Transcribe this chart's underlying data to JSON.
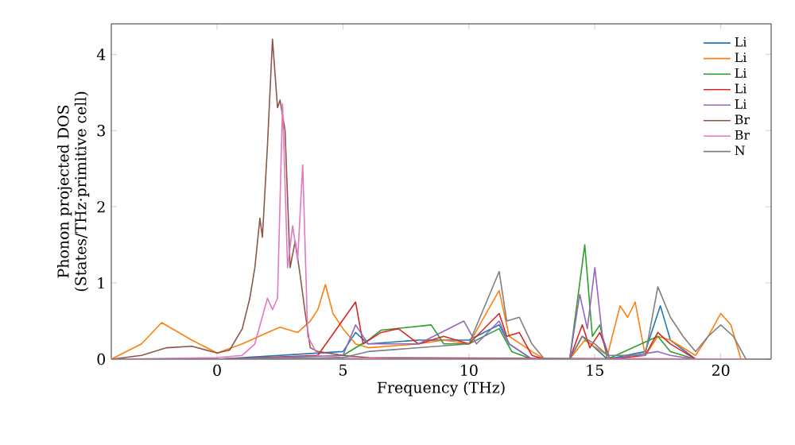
{
  "chart_data": {
    "type": "line",
    "xlabel": "Frequency (THz)",
    "ylabel": "Phonon projected DOS\n(States/THz·primitive cell)",
    "xlim": [
      -4.2,
      22
    ],
    "ylim": [
      0,
      4.4
    ],
    "xticks": [
      0,
      5,
      10,
      15,
      20
    ],
    "yticks": [
      0,
      1,
      2,
      3,
      4
    ],
    "legend": "top right",
    "grid": false,
    "series": [
      {
        "name": "Li",
        "color": "#1f77b4",
        "x": [
          -4.2,
          0,
          5,
          5.5,
          6,
          8,
          10,
          11.2,
          11.6,
          12.5,
          14,
          14.5,
          15,
          15.5,
          17,
          17.6,
          18,
          19,
          22
        ],
        "values": [
          0,
          0,
          0.1,
          0.35,
          0.2,
          0.25,
          0.25,
          0.45,
          0.2,
          0,
          0,
          0.3,
          0.15,
          0,
          0.1,
          0.7,
          0.25,
          0,
          0
        ]
      },
      {
        "name": "Li",
        "color": "#ff7f0e",
        "x": [
          -4.2,
          -3,
          -2.2,
          -1,
          0,
          1,
          2,
          2.5,
          3.2,
          3.7,
          4.0,
          4.3,
          4.6,
          5.0,
          5.5,
          6,
          8,
          9,
          10,
          11.2,
          11.6,
          12.5,
          13,
          14,
          14.6,
          15.5,
          16,
          16.3,
          16.6,
          17,
          17.5,
          18,
          19,
          19.5,
          20,
          20.4,
          20.8,
          22
        ],
        "values": [
          0,
          0.2,
          0.48,
          0.25,
          0.08,
          0.2,
          0.35,
          0.42,
          0.35,
          0.5,
          0.65,
          0.98,
          0.6,
          0.4,
          0.2,
          0.15,
          0.2,
          0.25,
          0.2,
          0.9,
          0.3,
          0.1,
          0,
          0,
          0.25,
          0.05,
          0.7,
          0.55,
          0.75,
          0.05,
          0.3,
          0.25,
          0.05,
          0.3,
          0.6,
          0.45,
          0,
          0
        ]
      },
      {
        "name": "Li",
        "color": "#2ca02c",
        "x": [
          -4.2,
          0,
          5,
          6,
          6.5,
          8.5,
          9,
          10,
          11.2,
          11.7,
          12.5,
          14,
          14.6,
          14.9,
          15.2,
          15.5,
          17.5,
          18,
          19,
          22
        ],
        "values": [
          0,
          0,
          0.05,
          0.25,
          0.38,
          0.45,
          0.2,
          0.2,
          0.4,
          0.1,
          0,
          0,
          1.5,
          0.3,
          0.45,
          0,
          0.3,
          0.1,
          0,
          0
        ]
      },
      {
        "name": "Li",
        "color": "#d62728",
        "x": [
          -4.2,
          0,
          4,
          5.5,
          5.8,
          6.5,
          7.2,
          8,
          9,
          10,
          11.2,
          11.5,
          12,
          12.5,
          13,
          14,
          14.5,
          14.8,
          15.2,
          15.6,
          17,
          17.5,
          18,
          18.5,
          19,
          22
        ],
        "values": [
          0,
          0,
          0.05,
          0.75,
          0.2,
          0.35,
          0.4,
          0.2,
          0.3,
          0.2,
          0.6,
          0.3,
          0.35,
          0.05,
          0,
          0,
          0.45,
          0.15,
          0.35,
          0,
          0.05,
          0.35,
          0.2,
          0.1,
          0,
          0
        ]
      },
      {
        "name": "Li",
        "color": "#9467bd",
        "x": [
          -4.2,
          0,
          5,
          5.5,
          6,
          8,
          9.8,
          10.3,
          11.2,
          11.6,
          12.5,
          14,
          14.4,
          14.7,
          15,
          15.3,
          15.6,
          17.5,
          18,
          19,
          22
        ],
        "values": [
          0,
          0,
          0.05,
          0.45,
          0.2,
          0.2,
          0.5,
          0.2,
          0.5,
          0.2,
          0,
          0,
          0.85,
          0.4,
          1.2,
          0.3,
          0,
          0.1,
          0.05,
          0,
          0
        ]
      },
      {
        "name": "Br",
        "color": "#8c564b",
        "x": [
          -4.2,
          -3,
          -2,
          -1,
          0,
          0.5,
          1,
          1.3,
          1.5,
          1.7,
          1.8,
          2.0,
          2.2,
          2.4,
          2.5,
          2.7,
          2.9,
          3.1,
          3.3,
          3.5,
          3.7,
          4,
          5,
          6,
          22
        ],
        "values": [
          0,
          0.05,
          0.15,
          0.17,
          0.08,
          0.12,
          0.4,
          0.8,
          1.2,
          1.85,
          1.6,
          2.8,
          4.2,
          3.3,
          3.4,
          3.0,
          1.2,
          1.55,
          1.1,
          0.6,
          0.15,
          0.1,
          0.05,
          0.02,
          0
        ]
      },
      {
        "name": "Br",
        "color": "#e377c2",
        "x": [
          -4.2,
          0,
          1,
          1.5,
          2.0,
          2.2,
          2.4,
          2.6,
          2.8,
          3.0,
          3.2,
          3.4,
          3.6,
          4.0,
          5,
          7,
          22
        ],
        "values": [
          0,
          0.02,
          0.05,
          0.2,
          0.8,
          0.65,
          0.8,
          3.35,
          1.2,
          1.75,
          1.3,
          2.55,
          0.3,
          0.05,
          0.02,
          0,
          0
        ]
      },
      {
        "name": "N",
        "color": "#7f7f7f",
        "x": [
          -4.2,
          0,
          5,
          6,
          8,
          10,
          11.2,
          11.5,
          12,
          12.5,
          13,
          14,
          14.5,
          15,
          15.5,
          17,
          17.5,
          18,
          18.5,
          19,
          19.5,
          20,
          20.5,
          21,
          22
        ],
        "values": [
          0,
          0,
          0.02,
          0.1,
          0.15,
          0.2,
          1.15,
          0.5,
          0.55,
          0.2,
          0,
          0,
          0.3,
          0.2,
          0.05,
          0.05,
          0.95,
          0.55,
          0.3,
          0.1,
          0.3,
          0.45,
          0.3,
          0,
          0
        ]
      }
    ]
  }
}
